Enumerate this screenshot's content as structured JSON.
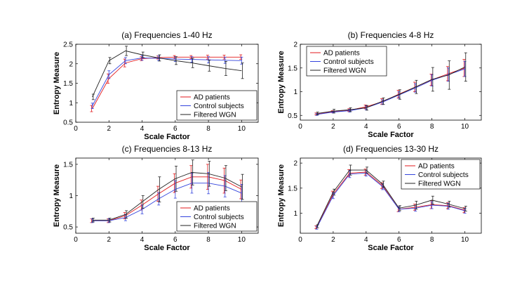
{
  "chart_data": [
    {
      "type": "line",
      "title": "(a)  Frequencies 1-40 Hz",
      "xlabel": "Scale Factor",
      "ylabel": "Entropy Measure",
      "xlim": [
        0,
        11
      ],
      "ylim": [
        0.5,
        2.5
      ],
      "xticks": [
        "0",
        "2",
        "4",
        "6",
        "8",
        "10"
      ],
      "yticks": [
        "0.5",
        "1",
        "1.5",
        "2",
        "2.5"
      ],
      "legend_position": "bottom-right",
      "x": [
        1,
        2,
        3,
        4,
        5,
        6,
        7,
        8,
        9,
        10
      ],
      "series": [
        {
          "name": "AD patients",
          "color": "#e31a1c",
          "values": [
            0.85,
            1.62,
            2.02,
            2.13,
            2.16,
            2.17,
            2.17,
            2.17,
            2.17,
            2.17
          ],
          "err": [
            0.08,
            0.12,
            0.1,
            0.05,
            0.04,
            0.04,
            0.04,
            0.05,
            0.05,
            0.06
          ]
        },
        {
          "name": "Control subjects",
          "color": "#3344dd",
          "values": [
            0.92,
            1.72,
            2.08,
            2.15,
            2.14,
            2.12,
            2.11,
            2.1,
            2.09,
            2.08
          ],
          "err": [
            0.07,
            0.1,
            0.08,
            0.06,
            0.06,
            0.06,
            0.07,
            0.08,
            0.08,
            0.09
          ]
        },
        {
          "name": "Filtered WGN",
          "color": "#222222",
          "values": [
            1.15,
            2.08,
            2.33,
            2.23,
            2.15,
            2.08,
            2.02,
            1.95,
            1.88,
            1.82
          ],
          "err": [
            0.07,
            0.08,
            0.12,
            0.07,
            0.08,
            0.1,
            0.12,
            0.14,
            0.18,
            0.2
          ]
        }
      ]
    },
    {
      "type": "line",
      "title": "(b)  Frequencies 4-8 Hz",
      "xlabel": "Scale Factor",
      "ylabel": "Entropy Measure",
      "xlim": [
        0,
        11
      ],
      "ylim": [
        0.4,
        2
      ],
      "xticks": [
        "0",
        "2",
        "4",
        "6",
        "8",
        "10"
      ],
      "yticks": [
        "0.5",
        "1",
        "1.5",
        "2"
      ],
      "legend_position": "top-left",
      "x": [
        1,
        2,
        3,
        4,
        5,
        6,
        7,
        8,
        9,
        10
      ],
      "series": [
        {
          "name": "AD patients",
          "color": "#e31a1c",
          "values": [
            0.53,
            0.58,
            0.61,
            0.68,
            0.79,
            0.95,
            1.1,
            1.25,
            1.38,
            1.5
          ],
          "err": [
            0.02,
            0.02,
            0.03,
            0.04,
            0.06,
            0.08,
            0.1,
            0.12,
            0.15,
            0.18
          ]
        },
        {
          "name": "Control subjects",
          "color": "#3344dd",
          "values": [
            0.52,
            0.57,
            0.6,
            0.66,
            0.78,
            0.93,
            1.08,
            1.24,
            1.36,
            1.48
          ],
          "err": [
            0.02,
            0.02,
            0.03,
            0.04,
            0.05,
            0.07,
            0.09,
            0.12,
            0.14,
            0.16
          ]
        },
        {
          "name": "Filtered WGN",
          "color": "#222222",
          "values": [
            0.54,
            0.59,
            0.62,
            0.66,
            0.8,
            0.94,
            1.1,
            1.26,
            1.35,
            1.52
          ],
          "err": [
            0.03,
            0.04,
            0.04,
            0.05,
            0.07,
            0.1,
            0.14,
            0.25,
            0.3,
            0.3
          ]
        }
      ]
    },
    {
      "type": "line",
      "title": "(c)  Frequencies 8-13 Hz",
      "xlabel": "Scale Factor",
      "ylabel": "Entropy Measure",
      "xlim": [
        0,
        11
      ],
      "ylim": [
        0.4,
        1.6
      ],
      "xticks": [
        "0",
        "2",
        "4",
        "6",
        "8",
        "10"
      ],
      "yticks": [
        "0.5",
        "1",
        "1.5"
      ],
      "legend_position": "bottom-right",
      "x": [
        1,
        2,
        3,
        4,
        5,
        6,
        7,
        8,
        9,
        10
      ],
      "series": [
        {
          "name": "AD patients",
          "color": "#e31a1c",
          "values": [
            0.6,
            0.6,
            0.68,
            0.85,
            1.03,
            1.2,
            1.3,
            1.3,
            1.24,
            1.1
          ],
          "err": [
            0.03,
            0.03,
            0.05,
            0.08,
            0.12,
            0.15,
            0.18,
            0.2,
            0.2,
            0.15
          ]
        },
        {
          "name": "Control subjects",
          "color": "#3344dd",
          "values": [
            0.6,
            0.6,
            0.65,
            0.78,
            0.95,
            1.1,
            1.2,
            1.2,
            1.15,
            1.04
          ],
          "err": [
            0.03,
            0.03,
            0.05,
            0.07,
            0.1,
            0.14,
            0.16,
            0.17,
            0.17,
            0.14
          ]
        },
        {
          "name": "Filtered WGN",
          "color": "#222222",
          "values": [
            0.61,
            0.61,
            0.7,
            0.9,
            1.1,
            1.27,
            1.37,
            1.35,
            1.28,
            1.14
          ],
          "err": [
            0.03,
            0.03,
            0.06,
            0.1,
            0.2,
            0.2,
            0.2,
            0.2,
            0.2,
            0.2
          ]
        }
      ]
    },
    {
      "type": "line",
      "title": "(d)  Frequencies 13-30 Hz",
      "xlabel": "Scale Factor",
      "ylabel": "Entropy Measure",
      "xlim": [
        0,
        11
      ],
      "ylim": [
        0.6,
        2.1
      ],
      "xticks": [
        "0",
        "2",
        "4",
        "6",
        "8",
        "10"
      ],
      "yticks": [
        "1",
        "1.5",
        "2"
      ],
      "legend_position": "top-right",
      "x": [
        1,
        2,
        3,
        4,
        5,
        6,
        7,
        8,
        9,
        10
      ],
      "series": [
        {
          "name": "AD patients",
          "color": "#e31a1c",
          "values": [
            0.72,
            1.38,
            1.8,
            1.82,
            1.55,
            1.08,
            1.12,
            1.17,
            1.15,
            1.06
          ],
          "err": [
            0.03,
            0.06,
            0.07,
            0.06,
            0.06,
            0.05,
            0.06,
            0.08,
            0.06,
            0.05
          ]
        },
        {
          "name": "Control subjects",
          "color": "#3344dd",
          "values": [
            0.71,
            1.35,
            1.78,
            1.8,
            1.53,
            1.08,
            1.1,
            1.16,
            1.14,
            1.05
          ],
          "err": [
            0.03,
            0.06,
            0.07,
            0.06,
            0.06,
            0.05,
            0.06,
            0.07,
            0.06,
            0.05
          ]
        },
        {
          "name": "Filtered WGN",
          "color": "#222222",
          "values": [
            0.74,
            1.42,
            1.86,
            1.86,
            1.58,
            1.1,
            1.16,
            1.26,
            1.18,
            1.09
          ],
          "err": [
            0.03,
            0.06,
            0.1,
            0.06,
            0.06,
            0.05,
            0.08,
            0.08,
            0.06,
            0.05
          ]
        }
      ]
    }
  ]
}
